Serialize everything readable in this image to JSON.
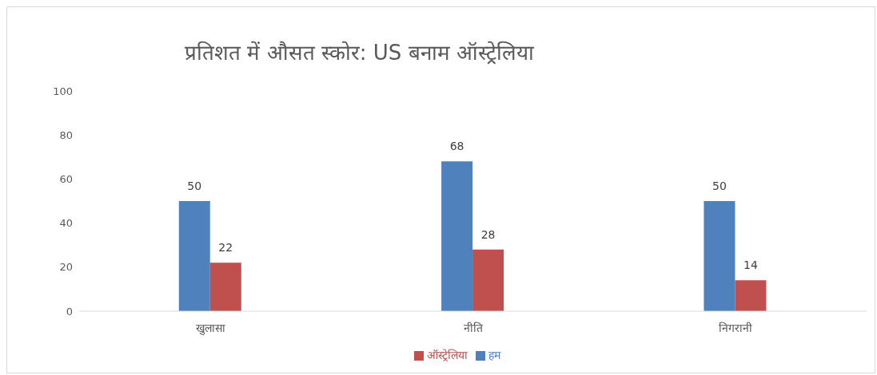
{
  "chart_data": {
    "type": "bar",
    "title": "प्रतिशत में औसत स्कोर: US बनाम ऑस्ट्रेलिया",
    "categories": [
      "खुलासा",
      "नीति",
      "निगरानी"
    ],
    "series": [
      {
        "name": "हम",
        "color": "#4f81bd",
        "values": [
          50,
          68,
          50
        ]
      },
      {
        "name": "ऑस्ट्रेलिया",
        "color": "#c0504d",
        "values": [
          22,
          28,
          14
        ]
      }
    ],
    "ylim": [
      0,
      100
    ],
    "yticks": [
      0,
      20,
      40,
      60,
      80,
      100
    ],
    "grid": false,
    "legend": "bottom",
    "data_labels": true
  }
}
